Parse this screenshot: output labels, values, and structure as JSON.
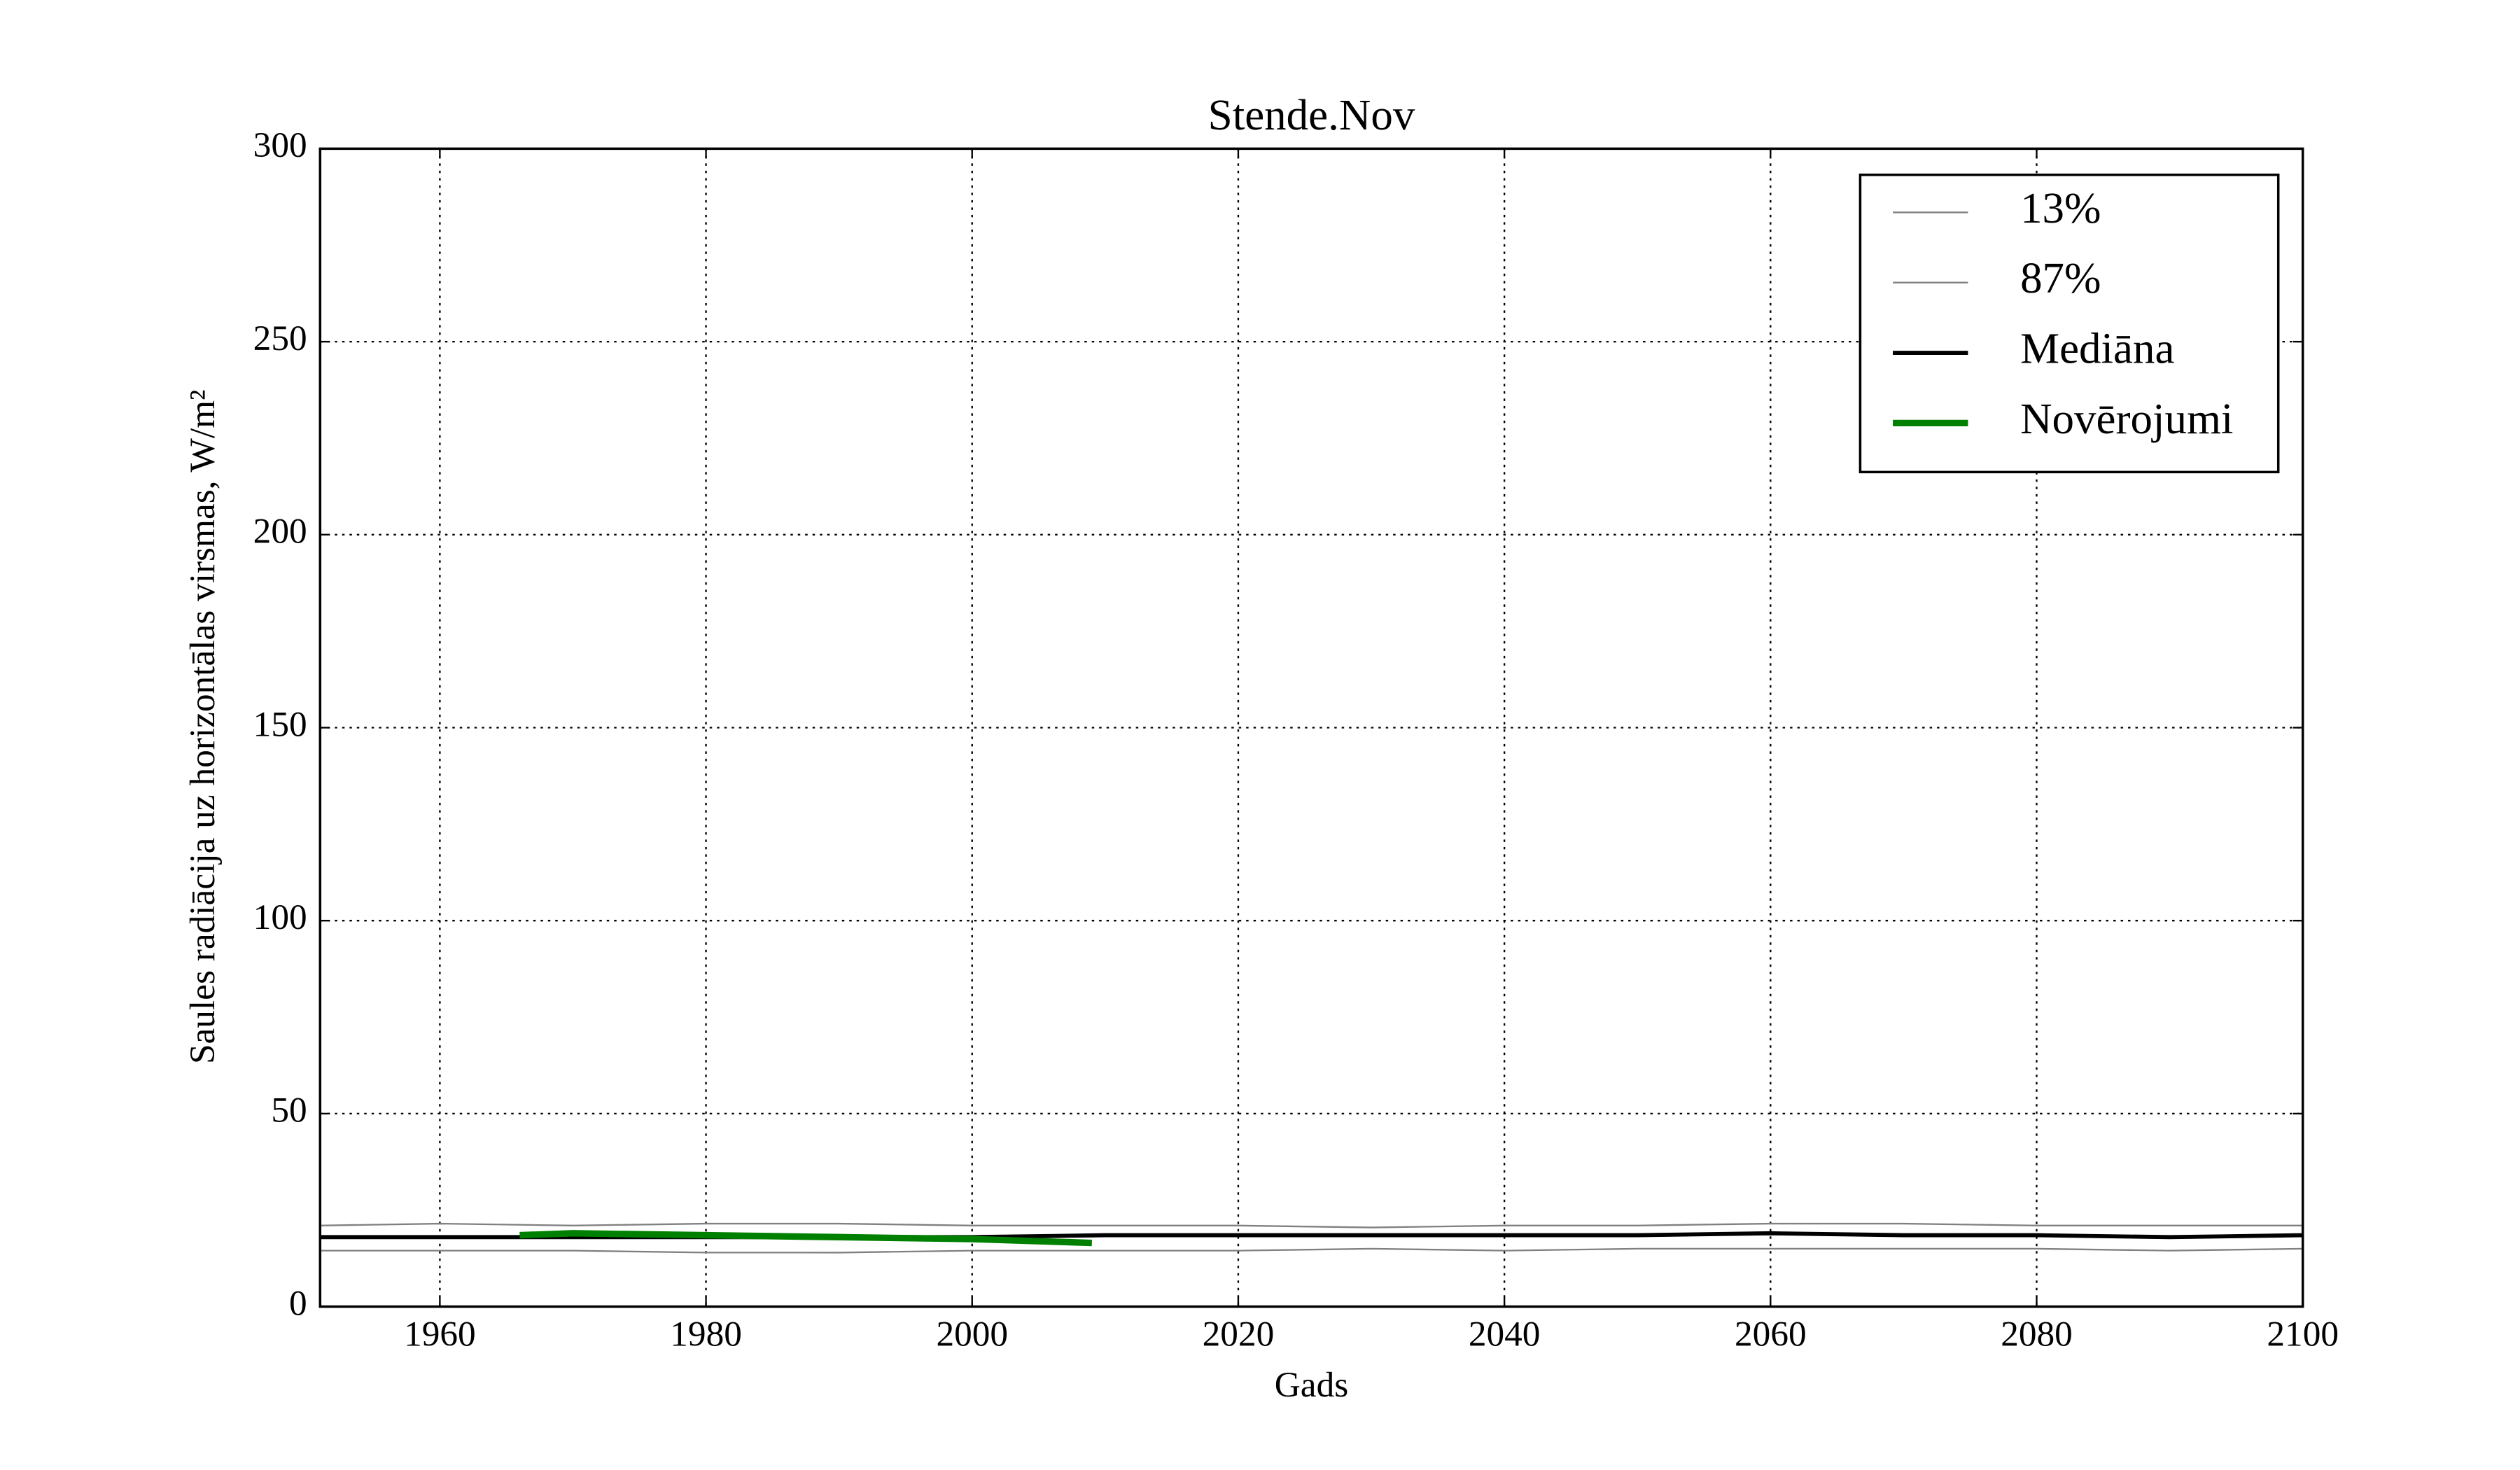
{
  "chart_data": {
    "type": "line",
    "title": "Stende.Nov",
    "xlabel": "Gads",
    "ylabel": "Saules radiācija uz horizontālas virsmas, W/m²",
    "xlim": [
      1951,
      2100
    ],
    "xticks": [
      1960,
      1980,
      2000,
      2020,
      2040,
      2060,
      2080,
      2100
    ],
    "ylim": [
      0,
      300
    ],
    "yticks": [
      0,
      50,
      100,
      150,
      200,
      250,
      300
    ],
    "grid": true,
    "legend": "upper right",
    "series": [
      {
        "name": "13%",
        "color": "#808080",
        "linewidth": 1,
        "x": [
          1951,
          1960,
          1970,
          1980,
          1990,
          2000,
          2010,
          2020,
          2030,
          2040,
          2050,
          2060,
          2070,
          2080,
          2090,
          2100
        ],
        "values": [
          14.5,
          14.5,
          14.5,
          14,
          14,
          14.5,
          14.5,
          14.5,
          15,
          14.5,
          15,
          15,
          15,
          15,
          14.5,
          15
        ]
      },
      {
        "name": "87%",
        "color": "#808080",
        "linewidth": 1,
        "x": [
          1951,
          1960,
          1970,
          1980,
          1990,
          2000,
          2010,
          2020,
          2030,
          2040,
          2050,
          2060,
          2070,
          2080,
          2090,
          2100
        ],
        "values": [
          21,
          21.5,
          21,
          21.5,
          21.5,
          21,
          21,
          21,
          20.5,
          21,
          21,
          21.5,
          21.5,
          21,
          21,
          21
        ]
      },
      {
        "name": "Mediāna",
        "color": "#000000",
        "linewidth": 2.5,
        "x": [
          1951,
          1960,
          1970,
          1980,
          1990,
          2000,
          2010,
          2020,
          2030,
          2040,
          2050,
          2060,
          2070,
          2080,
          2090,
          2100
        ],
        "values": [
          18,
          18,
          18,
          18,
          18,
          18,
          18.5,
          18.5,
          18.5,
          18.5,
          18.5,
          19,
          18.5,
          18.5,
          18,
          18.5
        ]
      },
      {
        "name": "Novērojumi",
        "color": "#008000",
        "linewidth": 4,
        "x": [
          1966,
          1970,
          1980,
          1990,
          2000,
          2009
        ],
        "values": [
          18.5,
          19,
          18.5,
          18,
          17.5,
          16.5
        ]
      }
    ]
  }
}
